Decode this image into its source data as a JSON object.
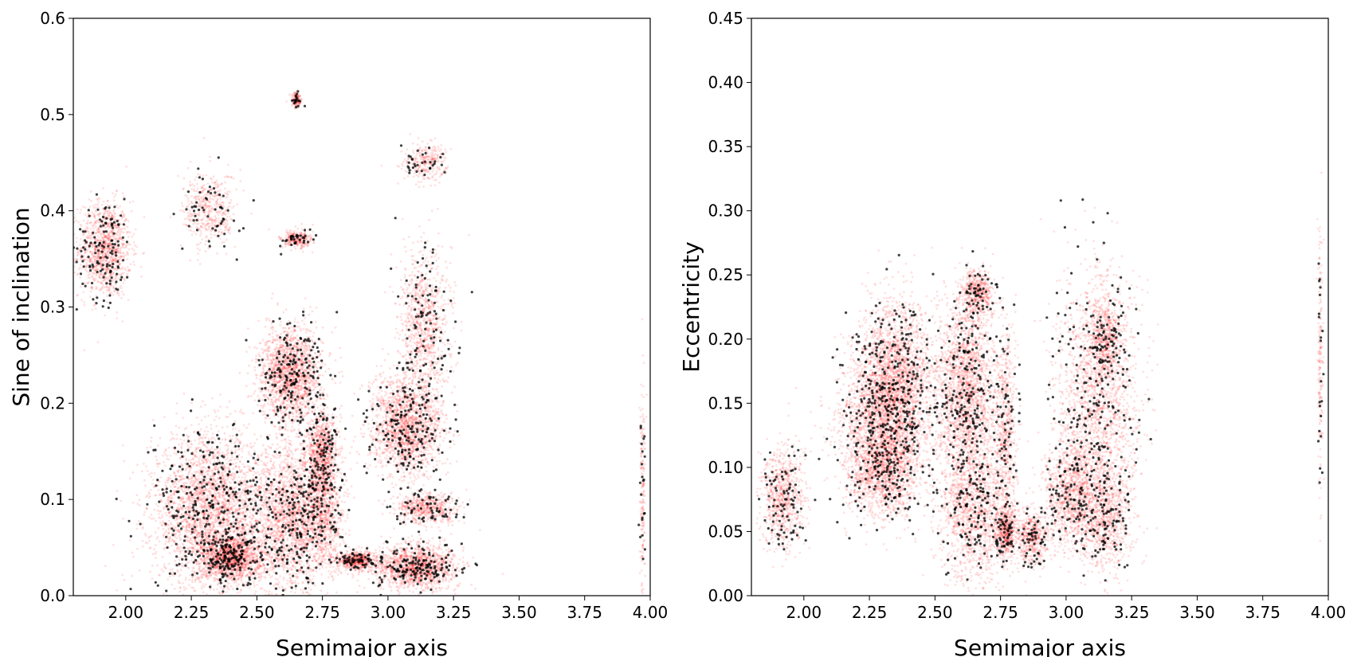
{
  "colors": {
    "density": "#ff0000",
    "points": "#000000",
    "frame": "#000000",
    "background": "#ffffff"
  },
  "chart_data": [
    {
      "type": "scatter",
      "xlabel": "Semimajor axis",
      "ylabel": "Sine of inclination",
      "xlim": [
        1.8,
        4.0
      ],
      "ylim": [
        0.0,
        0.6
      ],
      "xticks": [
        "2.00",
        "2.25",
        "2.50",
        "2.75",
        "3.00",
        "3.25",
        "3.50",
        "3.75",
        "4.00"
      ],
      "yticks": [
        "0.0",
        "0.1",
        "0.2",
        "0.3",
        "0.4",
        "0.5",
        "0.6"
      ],
      "grid": false,
      "density_clusters": [
        {
          "x": 1.92,
          "y": 0.36,
          "sx": 0.05,
          "sy": 0.025,
          "w": 1.2
        },
        {
          "x": 2.32,
          "y": 0.09,
          "sx": 0.11,
          "sy": 0.04,
          "w": 3.0
        },
        {
          "x": 2.4,
          "y": 0.04,
          "sx": 0.06,
          "sy": 0.012,
          "w": 1.5
        },
        {
          "x": 2.32,
          "y": 0.4,
          "sx": 0.05,
          "sy": 0.02,
          "w": 0.5
        },
        {
          "x": 2.63,
          "y": 0.23,
          "sx": 0.06,
          "sy": 0.025,
          "w": 1.8
        },
        {
          "x": 2.63,
          "y": 0.08,
          "sx": 0.07,
          "sy": 0.04,
          "w": 2.0
        },
        {
          "x": 2.75,
          "y": 0.15,
          "sx": 0.03,
          "sy": 0.02,
          "w": 0.8
        },
        {
          "x": 2.75,
          "y": 0.09,
          "sx": 0.04,
          "sy": 0.03,
          "w": 1.0
        },
        {
          "x": 2.65,
          "y": 0.37,
          "sx": 0.03,
          "sy": 0.005,
          "w": 0.3
        },
        {
          "x": 2.65,
          "y": 0.515,
          "sx": 0.01,
          "sy": 0.004,
          "w": 0.15
        },
        {
          "x": 2.88,
          "y": 0.036,
          "sx": 0.04,
          "sy": 0.005,
          "w": 0.6
        },
        {
          "x": 3.07,
          "y": 0.175,
          "sx": 0.07,
          "sy": 0.025,
          "w": 1.8
        },
        {
          "x": 3.14,
          "y": 0.28,
          "sx": 0.05,
          "sy": 0.04,
          "w": 1.0
        },
        {
          "x": 3.1,
          "y": 0.03,
          "sx": 0.08,
          "sy": 0.012,
          "w": 1.5
        },
        {
          "x": 3.15,
          "y": 0.09,
          "sx": 0.06,
          "sy": 0.008,
          "w": 0.6
        },
        {
          "x": 3.14,
          "y": 0.45,
          "sx": 0.04,
          "sy": 0.01,
          "w": 0.3
        },
        {
          "x": 3.97,
          "y": 0.1,
          "sx": 0.005,
          "sy": 0.06,
          "w": 0.2
        }
      ]
    },
    {
      "type": "scatter",
      "xlabel": "Semimajor axis",
      "ylabel": "Eccentricity",
      "xlim": [
        1.8,
        4.0
      ],
      "ylim": [
        0.0,
        0.45
      ],
      "xticks": [
        "2.00",
        "2.25",
        "2.50",
        "2.75",
        "3.00",
        "3.25",
        "3.50",
        "3.75",
        "4.00"
      ],
      "yticks": [
        "0.00",
        "0.05",
        "0.10",
        "0.15",
        "0.20",
        "0.25",
        "0.30",
        "0.35",
        "0.40",
        "0.45"
      ],
      "grid": false,
      "density_clusters": [
        {
          "x": 1.92,
          "y": 0.075,
          "sx": 0.04,
          "sy": 0.02,
          "w": 0.8
        },
        {
          "x": 2.35,
          "y": 0.17,
          "sx": 0.07,
          "sy": 0.03,
          "w": 2.0
        },
        {
          "x": 2.3,
          "y": 0.1,
          "sx": 0.07,
          "sy": 0.02,
          "w": 1.5
        },
        {
          "x": 2.3,
          "y": 0.14,
          "sx": 0.08,
          "sy": 0.03,
          "w": 1.5
        },
        {
          "x": 2.62,
          "y": 0.16,
          "sx": 0.06,
          "sy": 0.035,
          "w": 2.0
        },
        {
          "x": 2.66,
          "y": 0.235,
          "sx": 0.03,
          "sy": 0.01,
          "w": 0.5
        },
        {
          "x": 2.65,
          "y": 0.07,
          "sx": 0.07,
          "sy": 0.03,
          "w": 1.5
        },
        {
          "x": 2.77,
          "y": 0.05,
          "sx": 0.02,
          "sy": 0.01,
          "w": 0.5
        },
        {
          "x": 2.77,
          "y": 0.13,
          "sx": 0.02,
          "sy": 0.04,
          "w": 0.6
        },
        {
          "x": 2.87,
          "y": 0.045,
          "sx": 0.03,
          "sy": 0.01,
          "w": 0.5
        },
        {
          "x": 3.02,
          "y": 0.08,
          "sx": 0.05,
          "sy": 0.02,
          "w": 1.0
        },
        {
          "x": 3.12,
          "y": 0.15,
          "sx": 0.08,
          "sy": 0.05,
          "w": 2.0
        },
        {
          "x": 3.15,
          "y": 0.06,
          "sx": 0.05,
          "sy": 0.02,
          "w": 0.8
        },
        {
          "x": 3.15,
          "y": 0.2,
          "sx": 0.03,
          "sy": 0.015,
          "w": 0.5
        },
        {
          "x": 3.97,
          "y": 0.18,
          "sx": 0.005,
          "sy": 0.05,
          "w": 0.2
        }
      ]
    }
  ]
}
